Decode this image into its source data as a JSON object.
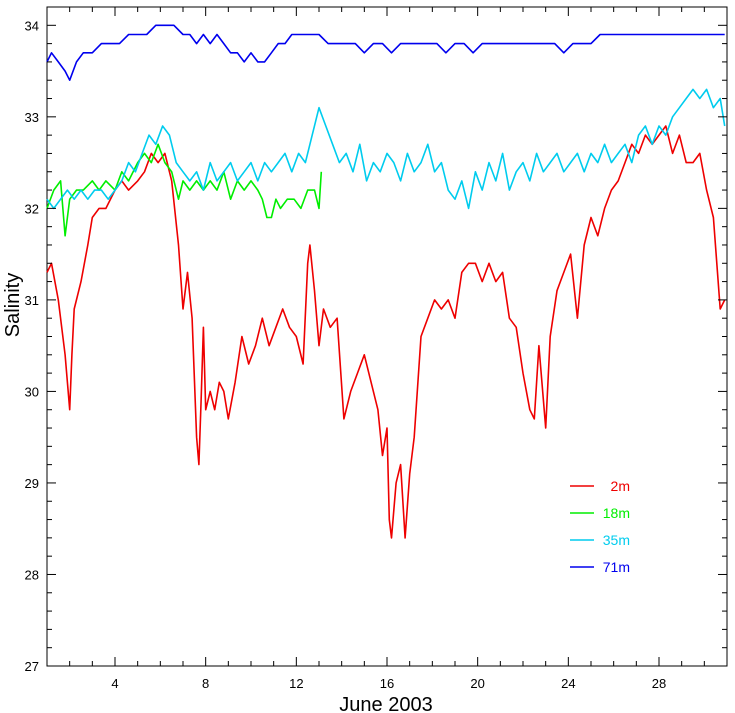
{
  "chart_data": {
    "type": "line",
    "title": "",
    "xlabel": "June 2003",
    "ylabel": "Salinity",
    "xlim": [
      1,
      31
    ],
    "ylim": [
      27,
      34.2
    ],
    "x_ticks": [
      4,
      8,
      12,
      16,
      20,
      24,
      28
    ],
    "y_ticks": [
      27,
      28,
      29,
      30,
      31,
      32,
      33,
      34
    ],
    "grid": false,
    "legend_position": "lower-right",
    "series": [
      {
        "name": "2m",
        "color": "#ee0000",
        "x": [
          1.0,
          1.2,
          1.5,
          1.8,
          2.0,
          2.1,
          2.2,
          2.5,
          2.8,
          3.0,
          3.3,
          3.6,
          4.0,
          4.3,
          4.6,
          5.0,
          5.3,
          5.6,
          5.9,
          6.2,
          6.5,
          6.8,
          7.0,
          7.2,
          7.4,
          7.6,
          7.7,
          7.8,
          7.9,
          8.0,
          8.2,
          8.4,
          8.6,
          8.8,
          9.0,
          9.3,
          9.6,
          9.9,
          10.2,
          10.5,
          10.8,
          11.1,
          11.4,
          11.7,
          12.0,
          12.3,
          12.5,
          12.6,
          12.8,
          13.0,
          13.2,
          13.5,
          13.8,
          14.1,
          14.4,
          14.7,
          15.0,
          15.3,
          15.6,
          15.8,
          16.0,
          16.1,
          16.2,
          16.4,
          16.6,
          16.8,
          17.0,
          17.2,
          17.5,
          17.8,
          18.1,
          18.4,
          18.7,
          19.0,
          19.3,
          19.6,
          19.9,
          20.2,
          20.5,
          20.8,
          21.1,
          21.4,
          21.7,
          22.0,
          22.3,
          22.5,
          22.7,
          23.0,
          23.2,
          23.5,
          23.8,
          24.1,
          24.4,
          24.7,
          25.0,
          25.3,
          25.6,
          25.9,
          26.2,
          26.5,
          26.8,
          27.1,
          27.4,
          27.7,
          28.0,
          28.3,
          28.6,
          28.9,
          29.2,
          29.5,
          29.8,
          30.1,
          30.4,
          30.7,
          30.9
        ],
        "values": [
          31.3,
          31.4,
          31.0,
          30.4,
          29.8,
          30.4,
          30.9,
          31.2,
          31.6,
          31.9,
          32.0,
          32.0,
          32.2,
          32.3,
          32.2,
          32.3,
          32.4,
          32.6,
          32.5,
          32.6,
          32.3,
          31.6,
          30.9,
          31.3,
          30.8,
          29.5,
          29.2,
          29.9,
          30.7,
          29.8,
          30.0,
          29.8,
          30.1,
          30.0,
          29.7,
          30.1,
          30.6,
          30.3,
          30.5,
          30.8,
          30.5,
          30.7,
          30.9,
          30.7,
          30.6,
          30.3,
          31.4,
          31.6,
          31.1,
          30.5,
          30.9,
          30.7,
          30.8,
          29.7,
          30.0,
          30.2,
          30.4,
          30.1,
          29.8,
          29.3,
          29.6,
          28.6,
          28.4,
          29.0,
          29.2,
          28.4,
          29.1,
          29.5,
          30.6,
          30.8,
          31.0,
          30.9,
          31.0,
          30.8,
          31.3,
          31.4,
          31.4,
          31.2,
          31.4,
          31.2,
          31.3,
          30.8,
          30.7,
          30.2,
          29.8,
          29.7,
          30.5,
          29.6,
          30.6,
          31.1,
          31.3,
          31.5,
          30.8,
          31.6,
          31.9,
          31.7,
          32.0,
          32.2,
          32.3,
          32.5,
          32.7,
          32.6,
          32.8,
          32.7,
          32.8,
          32.9,
          32.6,
          32.8,
          32.5,
          32.5,
          32.6,
          32.2,
          31.9,
          30.9,
          31.0
        ]
      },
      {
        "name": "18m",
        "color": "#00ee00",
        "x": [
          1.0,
          1.3,
          1.6,
          1.8,
          2.0,
          2.3,
          2.6,
          3.0,
          3.3,
          3.6,
          4.0,
          4.3,
          4.6,
          5.0,
          5.3,
          5.6,
          5.9,
          6.2,
          6.5,
          6.8,
          7.0,
          7.3,
          7.6,
          7.9,
          8.2,
          8.5,
          8.8,
          9.1,
          9.4,
          9.7,
          10.0,
          10.3,
          10.5,
          10.7,
          10.9,
          11.1,
          11.3,
          11.6,
          11.9,
          12.2,
          12.5,
          12.8,
          13.0,
          13.1
        ],
        "values": [
          32.0,
          32.2,
          32.3,
          31.7,
          32.1,
          32.2,
          32.2,
          32.3,
          32.2,
          32.3,
          32.2,
          32.4,
          32.3,
          32.5,
          32.6,
          32.5,
          32.7,
          32.5,
          32.4,
          32.1,
          32.3,
          32.2,
          32.3,
          32.2,
          32.3,
          32.2,
          32.4,
          32.1,
          32.3,
          32.2,
          32.3,
          32.2,
          32.1,
          31.9,
          31.9,
          32.1,
          32.0,
          32.1,
          32.1,
          32.0,
          32.2,
          32.2,
          32.0,
          32.4
        ]
      },
      {
        "name": "35m",
        "color": "#00ccee",
        "x": [
          1.0,
          1.3,
          1.6,
          1.9,
          2.2,
          2.5,
          2.8,
          3.1,
          3.4,
          3.7,
          4.0,
          4.3,
          4.6,
          4.9,
          5.2,
          5.5,
          5.8,
          6.1,
          6.4,
          6.7,
          7.0,
          7.3,
          7.6,
          7.9,
          8.2,
          8.5,
          8.8,
          9.1,
          9.4,
          9.7,
          10.0,
          10.3,
          10.6,
          10.9,
          11.2,
          11.5,
          11.8,
          12.1,
          12.4,
          12.7,
          13.0,
          13.3,
          13.6,
          13.9,
          14.2,
          14.5,
          14.8,
          15.1,
          15.4,
          15.7,
          16.0,
          16.3,
          16.6,
          16.9,
          17.2,
          17.5,
          17.8,
          18.1,
          18.4,
          18.7,
          19.0,
          19.3,
          19.6,
          19.9,
          20.2,
          20.5,
          20.8,
          21.1,
          21.4,
          21.7,
          22.0,
          22.3,
          22.6,
          22.9,
          23.2,
          23.5,
          23.8,
          24.1,
          24.4,
          24.7,
          25.0,
          25.3,
          25.6,
          25.9,
          26.2,
          26.5,
          26.8,
          27.1,
          27.4,
          27.7,
          28.0,
          28.3,
          28.6,
          28.9,
          29.2,
          29.5,
          29.8,
          30.1,
          30.4,
          30.7,
          30.9
        ],
        "values": [
          32.1,
          32.0,
          32.1,
          32.2,
          32.1,
          32.2,
          32.1,
          32.2,
          32.2,
          32.1,
          32.2,
          32.3,
          32.5,
          32.4,
          32.6,
          32.8,
          32.7,
          32.9,
          32.8,
          32.5,
          32.4,
          32.3,
          32.4,
          32.2,
          32.5,
          32.3,
          32.4,
          32.5,
          32.3,
          32.4,
          32.5,
          32.3,
          32.5,
          32.4,
          32.5,
          32.6,
          32.4,
          32.6,
          32.5,
          32.8,
          33.1,
          32.9,
          32.7,
          32.5,
          32.6,
          32.4,
          32.7,
          32.3,
          32.5,
          32.4,
          32.6,
          32.5,
          32.3,
          32.6,
          32.4,
          32.5,
          32.7,
          32.4,
          32.5,
          32.2,
          32.1,
          32.3,
          32.0,
          32.4,
          32.2,
          32.5,
          32.3,
          32.6,
          32.2,
          32.4,
          32.5,
          32.3,
          32.6,
          32.4,
          32.5,
          32.6,
          32.4,
          32.5,
          32.6,
          32.4,
          32.6,
          32.5,
          32.7,
          32.5,
          32.6,
          32.7,
          32.5,
          32.8,
          32.9,
          32.7,
          32.9,
          32.8,
          33.0,
          33.1,
          33.2,
          33.3,
          33.2,
          33.3,
          33.1,
          33.2,
          32.9
        ]
      },
      {
        "name": "71m",
        "color": "#0000ee",
        "x": [
          1.0,
          1.2,
          1.5,
          1.8,
          2.0,
          2.3,
          2.6,
          3.0,
          3.4,
          3.8,
          4.2,
          4.6,
          5.0,
          5.4,
          5.8,
          6.2,
          6.6,
          7.0,
          7.3,
          7.6,
          7.9,
          8.2,
          8.5,
          8.8,
          9.1,
          9.4,
          9.7,
          10.0,
          10.3,
          10.6,
          10.9,
          11.2,
          11.5,
          11.8,
          12.1,
          12.4,
          12.7,
          13.0,
          13.4,
          13.8,
          14.2,
          14.6,
          15.0,
          15.4,
          15.8,
          16.2,
          16.6,
          17.0,
          17.4,
          17.8,
          18.2,
          18.6,
          19.0,
          19.4,
          19.8,
          20.2,
          20.6,
          21.0,
          21.4,
          21.8,
          22.2,
          22.6,
          23.0,
          23.4,
          23.8,
          24.2,
          24.6,
          25.0,
          25.4,
          25.8,
          26.2,
          26.6,
          27.0,
          27.4,
          27.8,
          28.2,
          28.6,
          29.0,
          29.4,
          29.8,
          30.2,
          30.6,
          30.9
        ],
        "values": [
          33.6,
          33.7,
          33.6,
          33.5,
          33.4,
          33.6,
          33.7,
          33.7,
          33.8,
          33.8,
          33.8,
          33.9,
          33.9,
          33.9,
          34.0,
          34.0,
          34.0,
          33.9,
          33.9,
          33.8,
          33.9,
          33.8,
          33.9,
          33.8,
          33.7,
          33.7,
          33.6,
          33.7,
          33.6,
          33.6,
          33.7,
          33.8,
          33.8,
          33.9,
          33.9,
          33.9,
          33.9,
          33.9,
          33.8,
          33.8,
          33.8,
          33.8,
          33.7,
          33.8,
          33.8,
          33.7,
          33.8,
          33.8,
          33.8,
          33.8,
          33.8,
          33.7,
          33.8,
          33.8,
          33.7,
          33.8,
          33.8,
          33.8,
          33.8,
          33.8,
          33.8,
          33.8,
          33.8,
          33.8,
          33.7,
          33.8,
          33.8,
          33.8,
          33.9,
          33.9,
          33.9,
          33.9,
          33.9,
          33.9,
          33.9,
          33.9,
          33.9,
          33.9,
          33.9,
          33.9,
          33.9,
          33.9,
          33.9
        ]
      }
    ]
  }
}
